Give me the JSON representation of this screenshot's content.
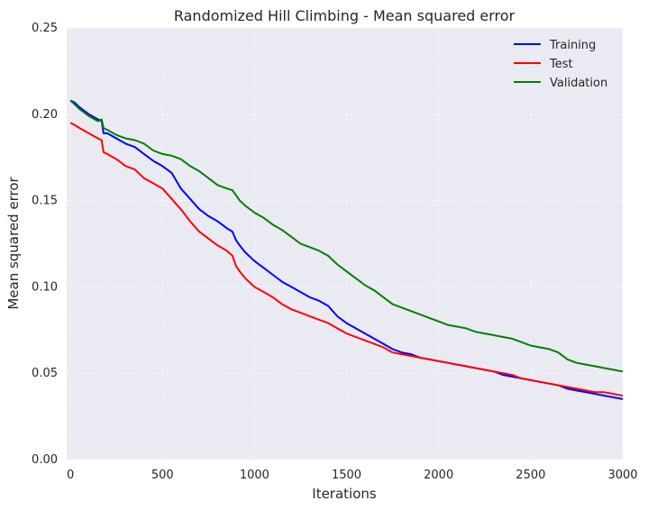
{
  "chart_data": {
    "type": "line",
    "title": "Randomized Hill Climbing - Mean squared error",
    "xlabel": "Iterations",
    "ylabel": "Mean squared error",
    "xlim": [
      -20,
      3000
    ],
    "ylim": [
      0,
      0.25
    ],
    "x_ticks": [
      0,
      500,
      1000,
      1500,
      2000,
      2500,
      3000
    ],
    "x_tick_labels": [
      "0",
      "500",
      "1000",
      "1500",
      "2000",
      "2500",
      "3000"
    ],
    "y_ticks": [
      0,
      0.05,
      0.1,
      0.15,
      0.2,
      0.25
    ],
    "y_tick_labels": [
      "0.00",
      "0.05",
      "0.10",
      "0.15",
      "0.20",
      "0.25"
    ],
    "grid": true,
    "legend_position": "top-right",
    "background_color": "#eaeaf2",
    "grid_color": "#ffffff",
    "x": [
      0,
      20,
      50,
      100,
      150,
      170,
      180,
      200,
      250,
      300,
      350,
      400,
      450,
      500,
      550,
      600,
      650,
      700,
      750,
      800,
      850,
      880,
      900,
      920,
      950,
      1000,
      1050,
      1100,
      1150,
      1200,
      1250,
      1300,
      1350,
      1400,
      1450,
      1500,
      1550,
      1600,
      1650,
      1700,
      1750,
      1800,
      1850,
      1900,
      1950,
      2000,
      2050,
      2100,
      2150,
      2200,
      2250,
      2300,
      2350,
      2400,
      2450,
      2500,
      2550,
      2600,
      2650,
      2700,
      2750,
      2800,
      2850,
      2900,
      2950,
      3000
    ],
    "series": [
      {
        "name": "Training",
        "color": "#0000ff",
        "values": [
          0.208,
          0.207,
          0.204,
          0.2,
          0.197,
          0.196,
          0.189,
          0.189,
          0.186,
          0.183,
          0.181,
          0.177,
          0.173,
          0.17,
          0.166,
          0.157,
          0.151,
          0.145,
          0.141,
          0.138,
          0.134,
          0.132,
          0.127,
          0.124,
          0.12,
          0.115,
          0.111,
          0.107,
          0.103,
          0.1,
          0.097,
          0.094,
          0.092,
          0.089,
          0.083,
          0.079,
          0.076,
          0.073,
          0.07,
          0.067,
          0.064,
          0.062,
          0.061,
          0.059,
          0.058,
          0.057,
          0.056,
          0.055,
          0.054,
          0.053,
          0.052,
          0.051,
          0.049,
          0.048,
          0.047,
          0.046,
          0.045,
          0.044,
          0.043,
          0.041,
          0.04,
          0.039,
          0.038,
          0.037,
          0.036,
          0.035
        ]
      },
      {
        "name": "Test",
        "color": "#ff0000",
        "values": [
          0.195,
          0.194,
          0.192,
          0.189,
          0.186,
          0.185,
          0.178,
          0.177,
          0.174,
          0.17,
          0.168,
          0.163,
          0.16,
          0.157,
          0.151,
          0.145,
          0.138,
          0.132,
          0.128,
          0.124,
          0.121,
          0.118,
          0.112,
          0.109,
          0.105,
          0.1,
          0.097,
          0.094,
          0.09,
          0.087,
          0.085,
          0.083,
          0.081,
          0.079,
          0.076,
          0.073,
          0.071,
          0.069,
          0.067,
          0.065,
          0.062,
          0.061,
          0.06,
          0.059,
          0.058,
          0.057,
          0.056,
          0.055,
          0.054,
          0.053,
          0.052,
          0.051,
          0.05,
          0.049,
          0.047,
          0.046,
          0.045,
          0.044,
          0.043,
          0.042,
          0.041,
          0.04,
          0.039,
          0.039,
          0.038,
          0.037
        ]
      },
      {
        "name": "Validation",
        "color": "#008000",
        "values": [
          0.208,
          0.206,
          0.203,
          0.199,
          0.196,
          0.197,
          0.192,
          0.191,
          0.188,
          0.186,
          0.185,
          0.183,
          0.179,
          0.177,
          0.176,
          0.174,
          0.17,
          0.167,
          0.163,
          0.159,
          0.157,
          0.156,
          0.153,
          0.15,
          0.147,
          0.143,
          0.14,
          0.136,
          0.133,
          0.129,
          0.125,
          0.123,
          0.121,
          0.118,
          0.113,
          0.109,
          0.105,
          0.101,
          0.098,
          0.094,
          0.09,
          0.088,
          0.086,
          0.084,
          0.082,
          0.08,
          0.078,
          0.077,
          0.076,
          0.074,
          0.073,
          0.072,
          0.071,
          0.07,
          0.068,
          0.066,
          0.065,
          0.064,
          0.062,
          0.058,
          0.056,
          0.055,
          0.054,
          0.053,
          0.052,
          0.051
        ]
      }
    ]
  }
}
